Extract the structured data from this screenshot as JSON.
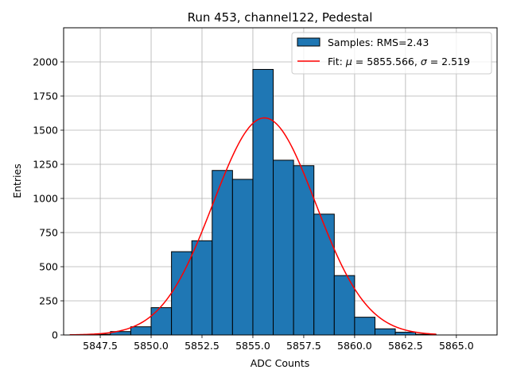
{
  "chart_data": {
    "type": "bar",
    "title": "Run 453, channel122, Pedestal",
    "xlabel": "ADC Counts",
    "ylabel": "Entries",
    "xlim": [
      5845.7,
      5867.0
    ],
    "ylim": [
      0,
      2250
    ],
    "grid": true,
    "legend_position": "top-right",
    "x_ticks": [
      5847.5,
      5850.0,
      5852.5,
      5855.0,
      5857.5,
      5860.0,
      5862.5,
      5865.0
    ],
    "x_tick_labels": [
      "5847.5",
      "5850.0",
      "5852.5",
      "5855.0",
      "5857.5",
      "5860.0",
      "5862.5",
      "5865.0"
    ],
    "y_ticks": [
      0,
      250,
      500,
      750,
      1000,
      1250,
      1500,
      1750,
      2000
    ],
    "y_tick_labels": [
      "0",
      "250",
      "500",
      "750",
      "1000",
      "1250",
      "1500",
      "1750",
      "2000"
    ],
    "histogram": {
      "name": "Samples: RMS=2.43",
      "color": "#1f77b4",
      "edge_color": "#000000",
      "bin_edges": [
        5846,
        5847,
        5848,
        5849,
        5850,
        5851,
        5852,
        5853,
        5854,
        5855,
        5856,
        5857,
        5858,
        5859,
        5860,
        5861,
        5862,
        5863,
        5864,
        5865,
        5866
      ],
      "values": [
        0,
        5,
        25,
        60,
        200,
        610,
        690,
        1205,
        1140,
        1945,
        1280,
        1240,
        885,
        435,
        130,
        45,
        20,
        5,
        0,
        0
      ]
    },
    "fit": {
      "name": "Fit: μ = 5855.566, σ = 2.519",
      "label_prefix": "Fit: ",
      "mu_symbol": "μ",
      "mu_text": " = 5855.566, ",
      "sigma_symbol": "σ",
      "sigma_text": " = 2.519",
      "mu": 5855.566,
      "sigma": 2.519,
      "amplitude": 1590,
      "x_range": [
        5846,
        5864
      ],
      "color": "#ff0000"
    }
  }
}
